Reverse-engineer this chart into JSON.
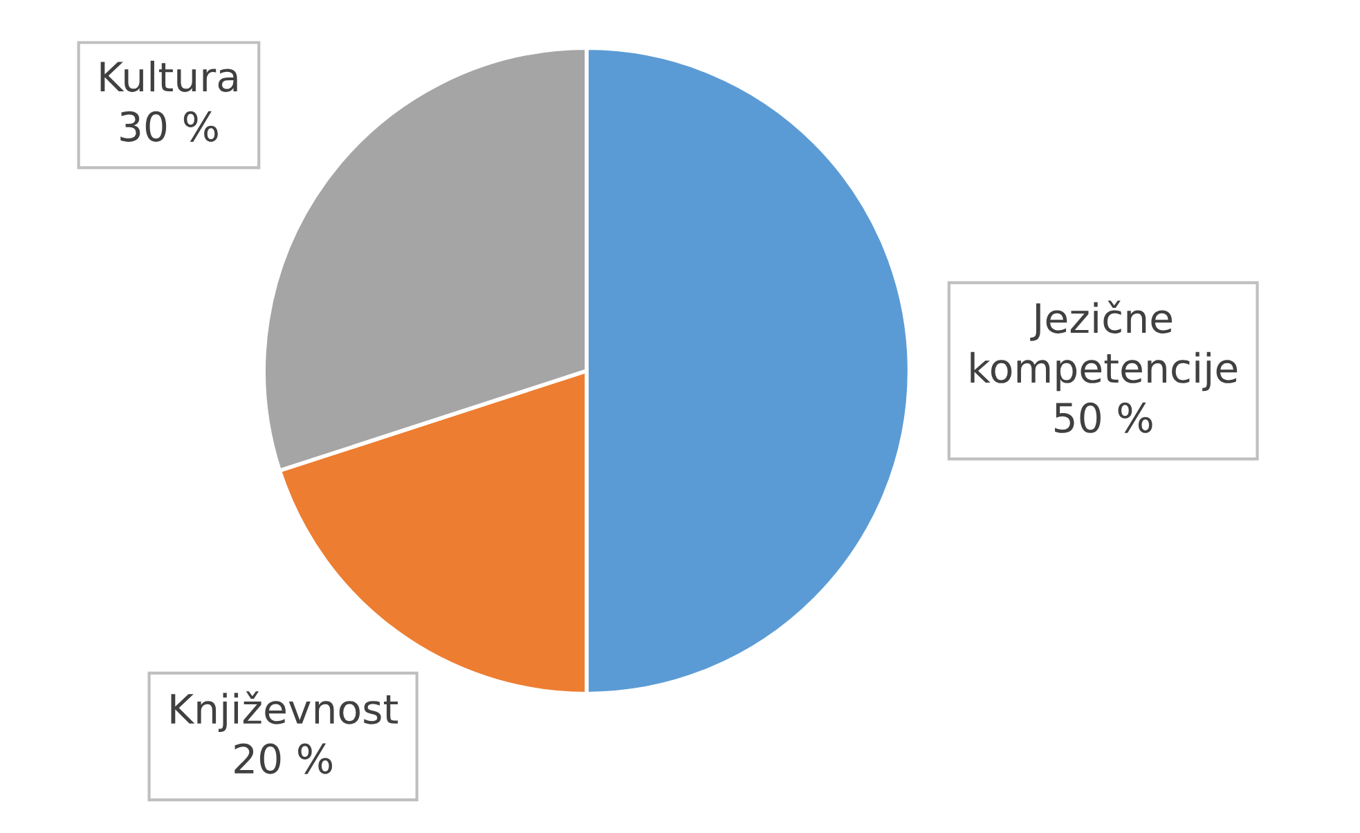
{
  "chart_data": {
    "type": "pie",
    "categories": [
      "Jezične kompetencije",
      "Književnost",
      "Kultura"
    ],
    "values": [
      50,
      20,
      30
    ],
    "colors": [
      "#5b9bd5",
      "#ed7d31",
      "#a5a5a5"
    ],
    "value_labels": [
      "50 %",
      "20 %",
      "30 %"
    ],
    "legend": false
  }
}
